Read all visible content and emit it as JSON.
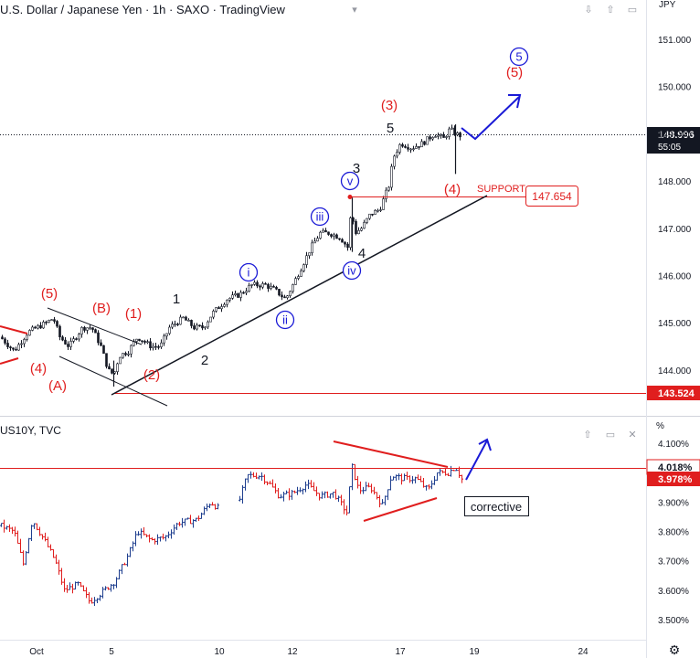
{
  "header": {
    "title": "U.S. Dollar / Japanese Yen · 1h · SAXO · TradingView",
    "currency": "JPY",
    "subtitle": "US10Y, TVC",
    "percent_label": "%"
  },
  "colors": {
    "up": "#26a69a",
    "down": "#ef5350",
    "bar": "#1f3f8f",
    "red_line": "#e01e1e",
    "blue_wave": "#1a1ad6",
    "support": "#e01e1e"
  },
  "chart_data": [
    {
      "type": "candlestick",
      "title": "U.S. Dollar / Japanese Yen · 1h · SAXO · TradingView",
      "y_ticks": [
        "151.000",
        "150.000",
        "149.000",
        "148.000",
        "147.000",
        "146.000",
        "145.000",
        "144.000"
      ],
      "y_range": [
        143.3,
        151.6
      ],
      "x_ticks": [
        "Oct",
        "5",
        "10",
        "12",
        "17",
        "19",
        "24"
      ],
      "last_price": "148.996",
      "countdown": "55:05",
      "support_price": "147.654",
      "support_label": "SUPPORT",
      "low_level": "143.524",
      "price_path": [
        [
          "Oct",
          144.6
        ],
        [
          "2",
          144.9
        ],
        [
          "3",
          145.1
        ],
        [
          "4",
          144.6
        ],
        [
          "4b",
          143.9
        ],
        [
          "5",
          144.5
        ],
        [
          "6",
          144.9
        ],
        [
          "9",
          145.1
        ],
        [
          "10",
          145.3
        ],
        [
          "11",
          145.7
        ],
        [
          "11b",
          145.5
        ],
        [
          "12",
          146.1
        ],
        [
          "13",
          146.9
        ],
        [
          "13b",
          146.8
        ],
        [
          "16",
          146.5
        ],
        [
          "16b",
          147.6
        ],
        [
          "17",
          147.3
        ],
        [
          "17b",
          147.9
        ],
        [
          "17c",
          148.7
        ],
        [
          "18",
          148.8
        ],
        [
          "18b",
          149.0
        ],
        [
          "18c",
          149.2
        ],
        [
          "18d",
          148.2
        ],
        [
          "19",
          148.99
        ]
      ],
      "wave_labels": {
        "red": [
          "(5)",
          "(B)",
          "(1)",
          "(4)",
          "(A)",
          "(2)",
          "(3)",
          "(4)",
          "(5)"
        ],
        "black": [
          "1",
          "2",
          "3",
          "4",
          "5"
        ],
        "blue": [
          "i",
          "ii",
          "iii",
          "iv",
          "v",
          "5"
        ]
      }
    },
    {
      "type": "ohlc",
      "title": "US10Y, TVC",
      "y_ticks": [
        "4.100%",
        "3.900%",
        "3.800%",
        "3.700%",
        "3.600%",
        "3.500%"
      ],
      "y_range": [
        3.45,
        4.14
      ],
      "last_value": "3.978%",
      "level_value": "4.018%",
      "annotation": "corrective"
    }
  ]
}
